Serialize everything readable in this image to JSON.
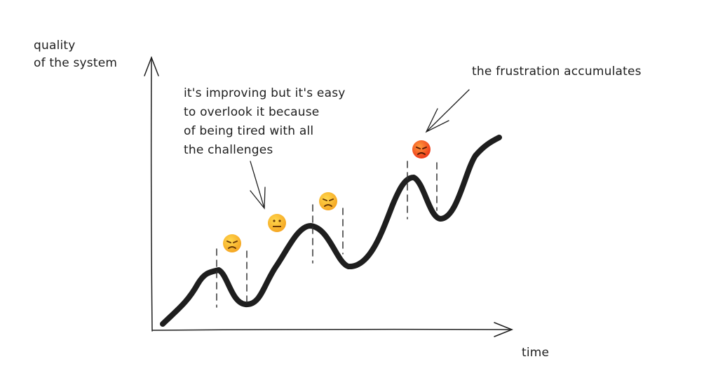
{
  "y_axis_label": [
    "quality",
    "of the system"
  ],
  "x_axis_label": "time",
  "annotation_improving": [
    "it's improving but it's easy",
    "to overlook it because",
    "of being tired with all",
    "the challenges"
  ],
  "annotation_frustration": "the frustration accumulates",
  "emojis": [
    "angry-face",
    "neutral-face",
    "angry-face",
    "pouting-red-face"
  ],
  "colors": {
    "ink": "#1e1e1e",
    "emoji_yellow": "#f9b626",
    "emoji_red": "#f2561d"
  }
}
